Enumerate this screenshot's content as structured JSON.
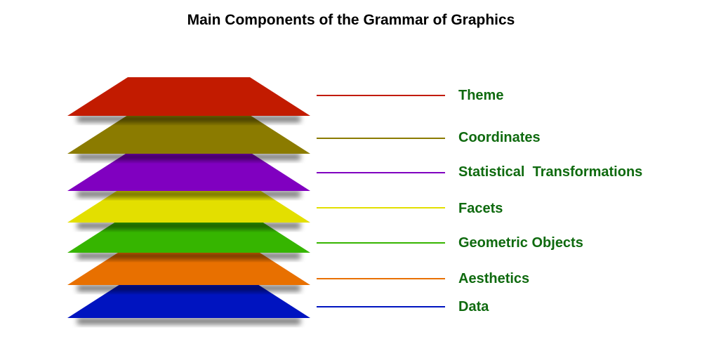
{
  "title": "Main Components of the Grammar of Graphics",
  "label_color": "#0f6a0f",
  "layers": [
    {
      "label": "Theme",
      "color": "#c21b00"
    },
    {
      "label": "Coordinates",
      "color": "#8b7b00"
    },
    {
      "label": "Statistical  Transformations",
      "color": "#8000c0"
    },
    {
      "label": "Facets",
      "color": "#e3df00"
    },
    {
      "label": "Geometric Objects",
      "color": "#36b500"
    },
    {
      "label": "Aesthetics",
      "color": "#e87000"
    },
    {
      "label": "Data",
      "color": "#0014c0"
    }
  ]
}
